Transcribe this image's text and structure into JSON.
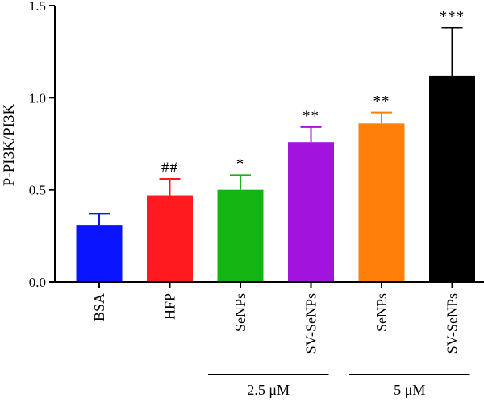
{
  "chart_data": {
    "type": "bar",
    "title": "",
    "xlabel": "",
    "ylabel": "P-PI3K/PI3K",
    "ylim": [
      0,
      1.5
    ],
    "yticks": [
      0.0,
      0.5,
      1.0,
      1.5
    ],
    "ytick_labels": [
      "0.0",
      "0.5",
      "1.0",
      "1.5"
    ],
    "categories": [
      "BSA",
      "HFP",
      "SeNPs",
      "SV-SeNPs",
      "SeNPs",
      "SV-SeNPs"
    ],
    "values": [
      0.31,
      0.47,
      0.5,
      0.76,
      0.86,
      1.12
    ],
    "errors": [
      0.06,
      0.09,
      0.08,
      0.08,
      0.06,
      0.26
    ],
    "colors": [
      "#0a14ff",
      "#ff1a1f",
      "#13b513",
      "#a213dd",
      "#ff7f0a",
      "#000000"
    ],
    "significance": [
      "",
      "##",
      "*",
      "**",
      "**",
      "***"
    ],
    "groups": [
      {
        "label": "2.5 μM",
        "categories": [
          2,
          3
        ]
      },
      {
        "label": "5 μM",
        "categories": [
          4,
          5
        ]
      }
    ],
    "grid": false,
    "legend": "none"
  }
}
